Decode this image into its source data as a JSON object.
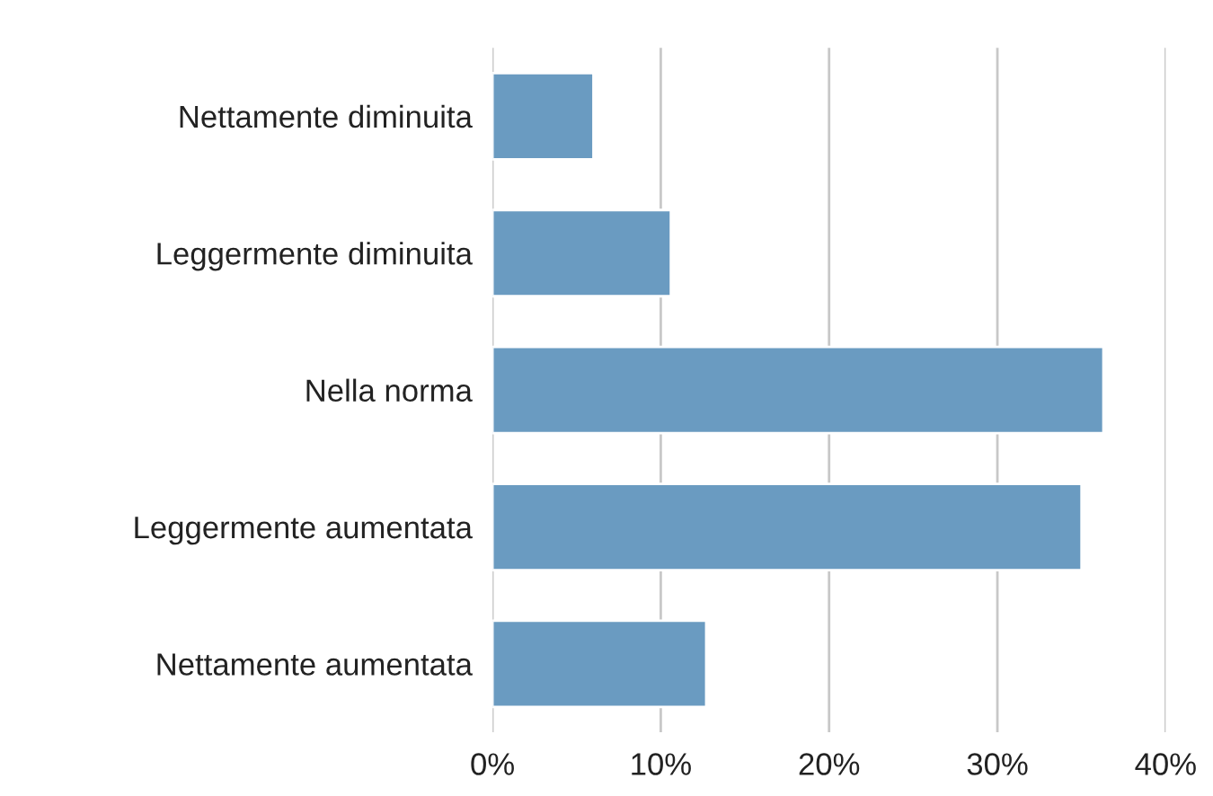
{
  "chart_data": {
    "type": "bar",
    "orientation": "horizontal",
    "categories": [
      "Nettamente diminuita",
      "Leggermente diminuita",
      "Nella norma",
      "Leggermente aumentata",
      "Nettamente aumentata"
    ],
    "values": [
      6.0,
      10.6,
      36.3,
      35.0,
      12.7
    ],
    "color": "#6a9bc1",
    "xlim": [
      0,
      40
    ],
    "xticks": [
      {
        "value": 0,
        "label": "0%"
      },
      {
        "value": 10,
        "label": "10%"
      },
      {
        "value": 20,
        "label": "20%"
      },
      {
        "value": 30,
        "label": "30%"
      },
      {
        "value": 40,
        "label": "40%"
      }
    ],
    "grid": "x"
  }
}
